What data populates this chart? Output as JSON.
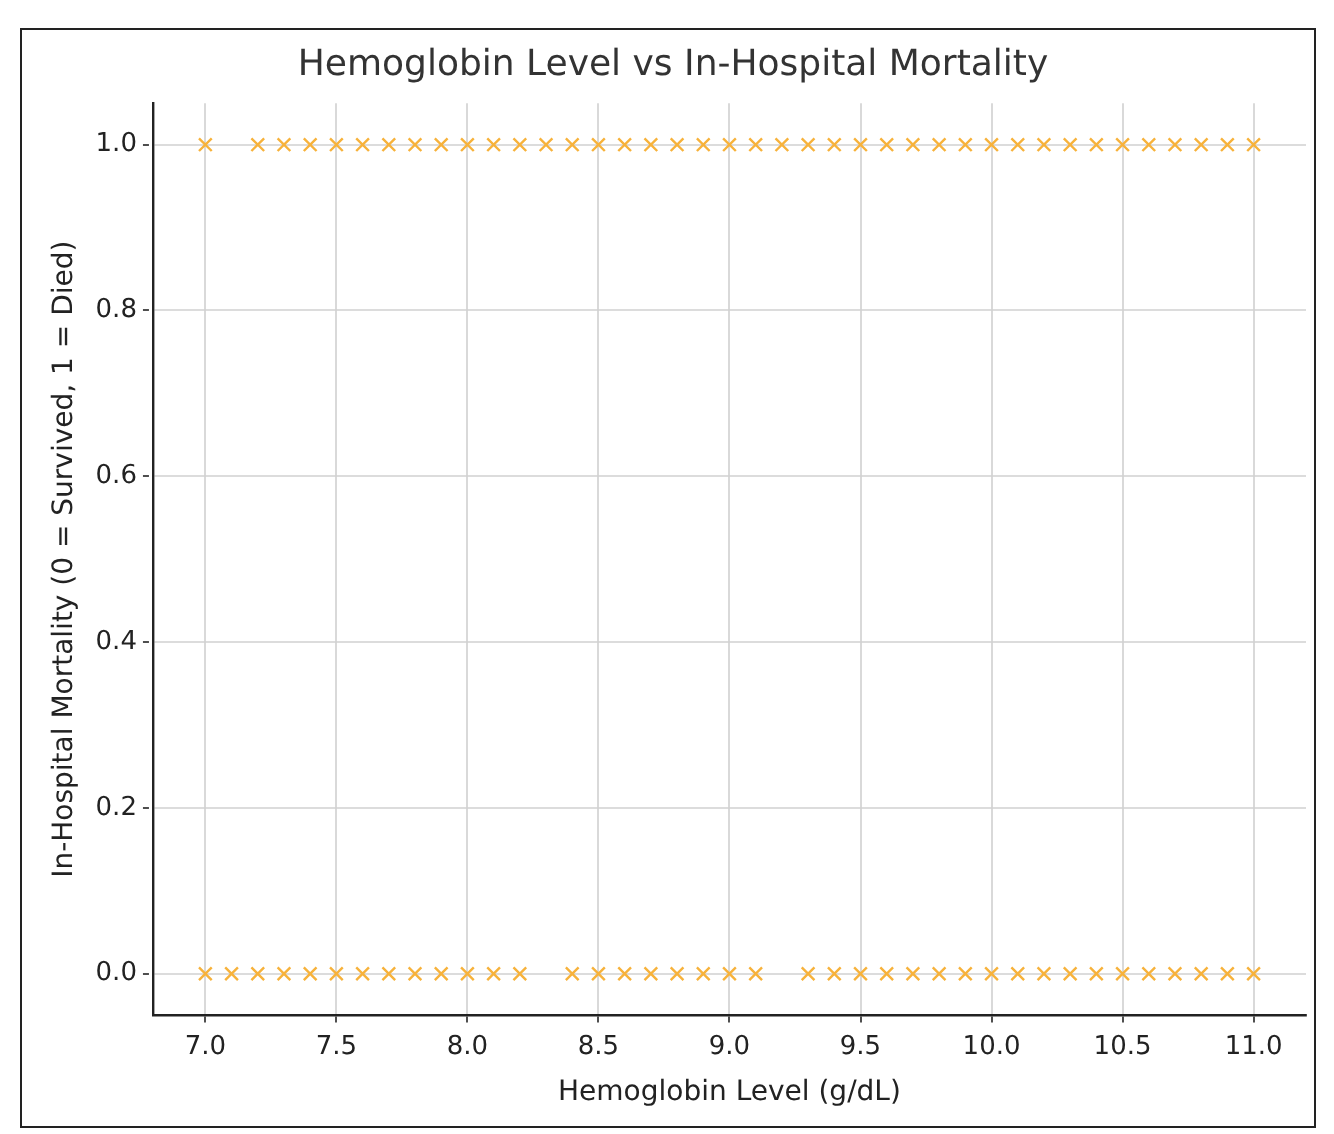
{
  "chart_data": {
    "type": "scatter",
    "title": "Hemoglobin Level vs In-Hospital Mortality",
    "xlabel": "Hemoglobin Level (g/dL)",
    "ylabel": "In-Hospital Mortality (0 = Survived, 1 = Died)",
    "series": [
      {
        "color": "#f7b23b",
        "x": [
          7.0,
          7.2,
          7.3,
          7.4,
          7.5,
          7.6,
          7.7,
          7.8,
          7.9,
          8.0,
          8.1,
          8.2,
          8.3,
          8.4,
          8.5,
          8.6,
          8.7,
          8.8,
          8.9,
          9.0,
          9.1,
          9.2,
          9.3,
          9.4,
          9.5,
          9.6,
          9.7,
          9.8,
          9.9,
          10.0,
          10.1,
          10.2,
          10.3,
          10.4,
          10.5,
          10.6,
          10.7,
          10.8,
          10.9,
          11.0
        ],
        "values": [
          1,
          1,
          1,
          1,
          1,
          1,
          1,
          1,
          1,
          1,
          1,
          1,
          1,
          1,
          1,
          1,
          1,
          1,
          1,
          1,
          1,
          1,
          1,
          1,
          1,
          1,
          1,
          1,
          1,
          1,
          1,
          1,
          1,
          1,
          1,
          1,
          1,
          1,
          1,
          1
        ]
      },
      {
        "color": "#f7b23b",
        "x": [
          7.0,
          7.1,
          7.2,
          7.3,
          7.4,
          7.5,
          7.6,
          7.7,
          7.8,
          7.9,
          8.0,
          8.1,
          8.2,
          8.4,
          8.5,
          8.6,
          8.7,
          8.8,
          8.9,
          9.0,
          9.1,
          9.3,
          9.4,
          9.5,
          9.6,
          9.7,
          9.8,
          9.9,
          10.0,
          10.1,
          10.2,
          10.3,
          10.4,
          10.5,
          10.6,
          10.7,
          10.8,
          10.9,
          11.0
        ],
        "values": [
          0,
          0,
          0,
          0,
          0,
          0,
          0,
          0,
          0,
          0,
          0,
          0,
          0,
          0,
          0,
          0,
          0,
          0,
          0,
          0,
          0,
          0,
          0,
          0,
          0,
          0,
          0,
          0,
          0,
          0,
          0,
          0,
          0,
          0,
          0,
          0,
          0,
          0,
          0
        ]
      }
    ],
    "xlim": [
      6.8,
      11.2
    ],
    "xticks": [
      {
        "value": 7,
        "label": "7.0"
      },
      7.5,
      {
        "value": 8,
        "label": "8.0"
      },
      8.5,
      {
        "value": 9,
        "label": "9.0"
      },
      9.5,
      {
        "value": 10,
        "label": "10.0"
      },
      10.5,
      {
        "value": 11,
        "label": "11.0"
      }
    ],
    "ylim": [
      -0.05,
      1.05
    ],
    "yticks": [
      {
        "value": 0,
        "label": "0.0"
      },
      0.2,
      0.4,
      0.6,
      0.8,
      {
        "value": 1,
        "label": "1.0"
      }
    ],
    "grid": true,
    "legend": false,
    "marker": "cross"
  }
}
